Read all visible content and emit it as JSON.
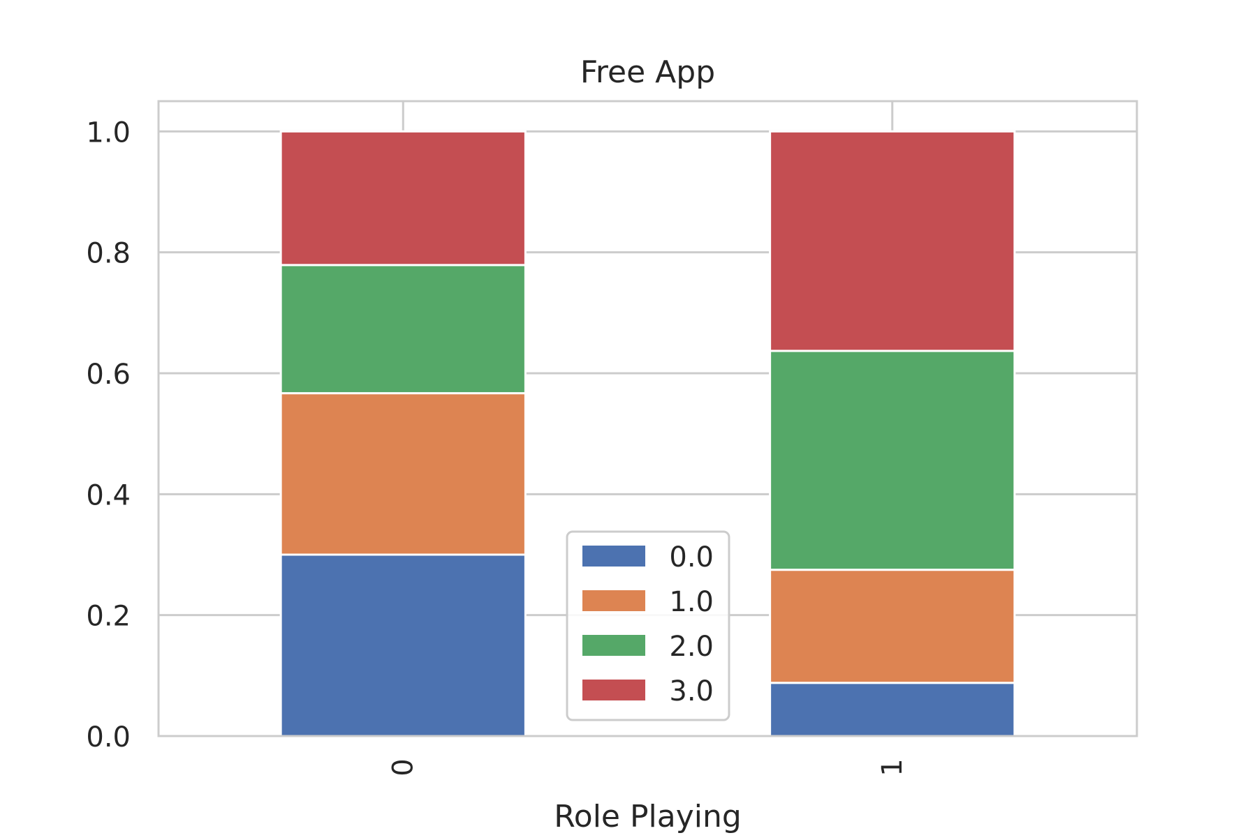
{
  "chart_data": {
    "type": "bar",
    "stacked": true,
    "title": "Free App",
    "xlabel": "Role Playing",
    "ylabel": "",
    "categories": [
      "0",
      "1"
    ],
    "ylim": [
      0,
      1.05
    ],
    "yticks": [
      "0.0",
      "0.2",
      "0.4",
      "0.6",
      "0.8",
      "1.0"
    ],
    "grid": true,
    "legend_position": "lower-center",
    "series": [
      {
        "name": "0.0",
        "color": "#4c72b0",
        "values": [
          0.3,
          0.088
        ]
      },
      {
        "name": "1.0",
        "color": "#dd8452",
        "values": [
          0.267,
          0.187
        ]
      },
      {
        "name": "2.0",
        "color": "#55a868",
        "values": [
          0.212,
          0.362
        ]
      },
      {
        "name": "3.0",
        "color": "#c44e52",
        "values": [
          0.221,
          0.363
        ]
      }
    ]
  }
}
